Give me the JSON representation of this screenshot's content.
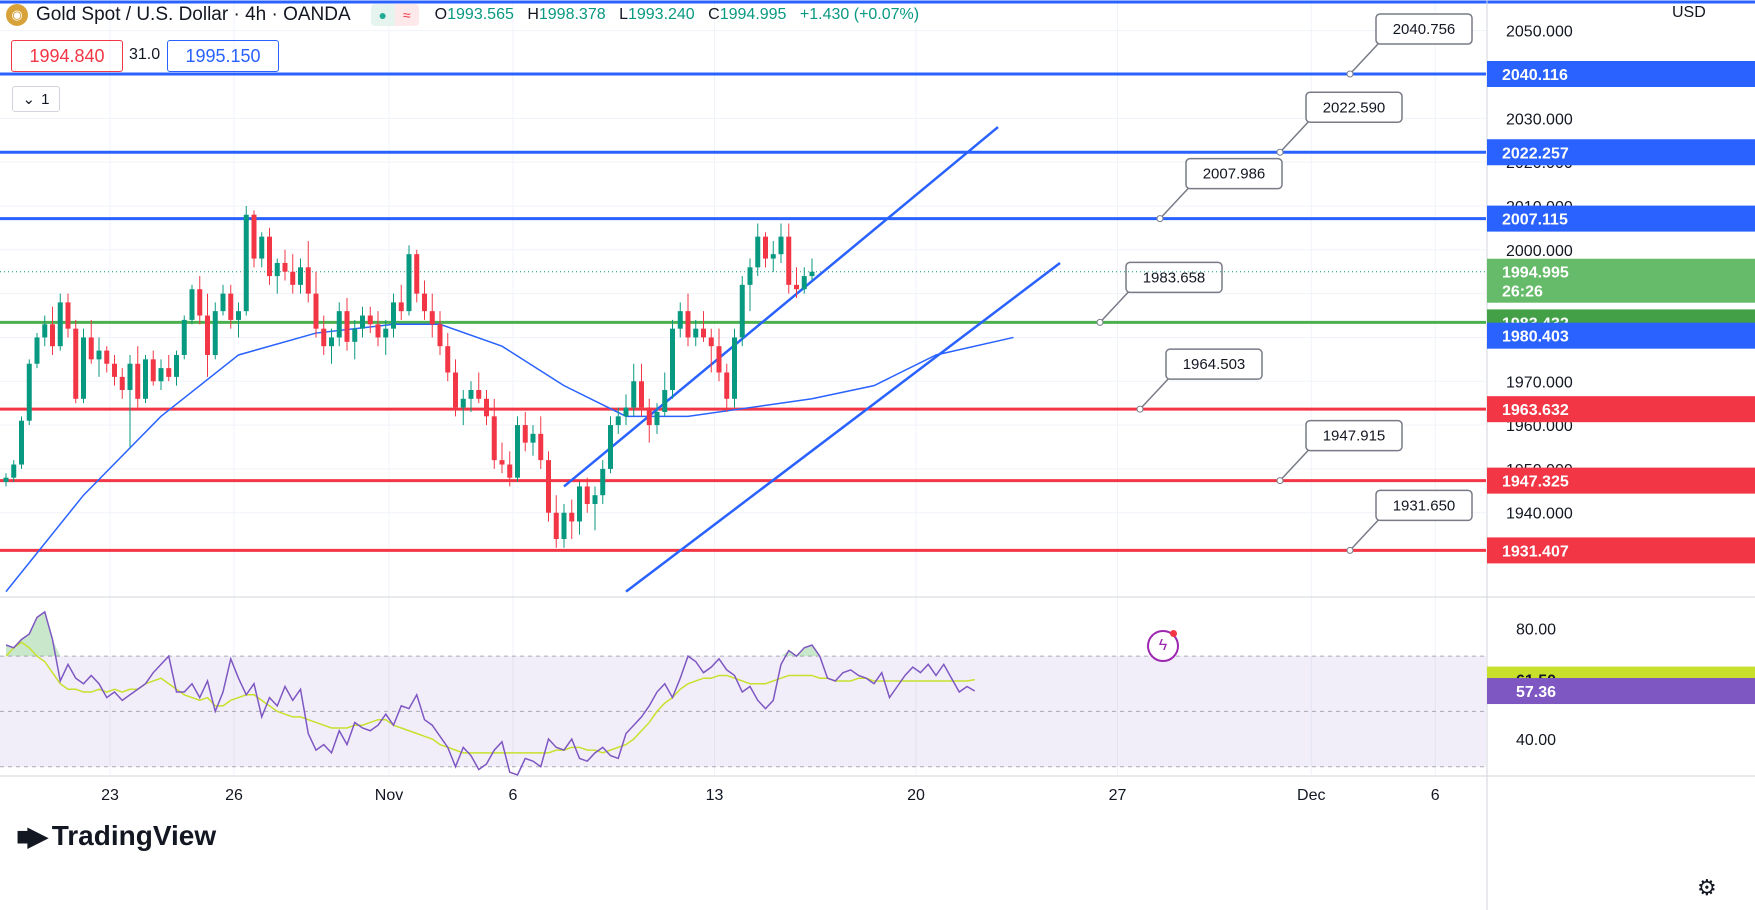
{
  "header": {
    "symbol": "Gold Spot / U.S. Dollar · 4h · OANDA",
    "ohlc": {
      "o_label": "O",
      "o": "1993.565",
      "h_label": "H",
      "h": "1998.378",
      "l_label": "L",
      "l": "1993.240",
      "c_label": "C",
      "c": "1994.995",
      "change": "+1.430 (+0.07%)"
    }
  },
  "quote": {
    "bid": "1994.840",
    "spread": "31.0",
    "ask": "1995.150"
  },
  "indicators_collapsed": "1",
  "currency": "USD",
  "brand": "TradingView",
  "icons": {
    "eye": "eye-icon",
    "wave": "approx-icon",
    "settings": "gear-icon",
    "alert": "lightning-icon"
  },
  "colors": {
    "up": "#089981",
    "down": "#f23645",
    "resistance": "#2962ff",
    "support_line": "#4caf50",
    "channel": "#2962ff",
    "ma": "#2962ff",
    "rsi": "#7e57c2",
    "rsi_ma": "#c8e02c"
  },
  "chart_data": [
    {
      "type": "candlestick",
      "title": "Gold Spot / U.S. Dollar · 4h · OANDA",
      "x_tick_labels": [
        "23",
        "26",
        "Nov",
        "6",
        "13",
        "20",
        "27",
        "Dec",
        "6"
      ],
      "ylim": [
        1921,
        2057
      ],
      "y_ticks": [
        1940,
        1950,
        1960,
        1970,
        1980,
        1990,
        2000,
        2010,
        2020,
        2030,
        2040,
        2050
      ],
      "y_tick_labels": [
        "1940.000",
        "1950.000",
        "1960.000",
        "1970.000",
        "1980.000",
        "1990.000",
        "2000.000",
        "2010.000",
        "2020.000",
        "2030.000",
        "2040.000",
        "2050.000"
      ],
      "price_badges": [
        {
          "label": "2040.116",
          "value": 2040.116,
          "color": "#2962ff"
        },
        {
          "label": "2022.257",
          "value": 2022.257,
          "color": "#2962ff"
        },
        {
          "label": "2007.115",
          "value": 2007.115,
          "color": "#2962ff"
        },
        {
          "label": "1994.995",
          "sub": "26:26",
          "value": 1994.995,
          "color": "#66bb6a"
        },
        {
          "label": "1983.432",
          "value": 1983.432,
          "color": "#43a047"
        },
        {
          "label": "1980.403",
          "value": 1980.403,
          "color": "#2962ff"
        },
        {
          "label": "1963.632",
          "value": 1963.632,
          "color": "#f23645"
        },
        {
          "label": "1947.325",
          "value": 1947.325,
          "color": "#f23645"
        },
        {
          "label": "1931.407",
          "value": 1931.407,
          "color": "#f23645"
        }
      ],
      "horizontal_levels": [
        {
          "value": 2040.116,
          "color": "#2962ff",
          "callout": "2040.756"
        },
        {
          "value": 2022.257,
          "color": "#2962ff",
          "callout": "2022.590"
        },
        {
          "value": 2007.115,
          "color": "#2962ff",
          "callout": "2007.986"
        },
        {
          "value": 1983.432,
          "color": "#4caf50",
          "callout": "1983.658"
        },
        {
          "value": 1963.632,
          "color": "#f23645",
          "callout": "1964.503"
        },
        {
          "value": 1947.325,
          "color": "#f23645",
          "callout": "1947.915"
        },
        {
          "value": 1931.407,
          "color": "#f23645",
          "callout": "1931.650"
        }
      ],
      "channel": {
        "upper": [
          [
            72,
            1946
          ],
          [
            128,
            2028
          ]
        ],
        "lower": [
          [
            80,
            1922
          ],
          [
            136,
            1997
          ]
        ]
      },
      "moving_average": [
        [
          0,
          1922
        ],
        [
          10,
          1944
        ],
        [
          20,
          1962
        ],
        [
          30,
          1976
        ],
        [
          40,
          1981
        ],
        [
          50,
          1983
        ],
        [
          56,
          1983
        ],
        [
          64,
          1978
        ],
        [
          72,
          1969
        ],
        [
          80,
          1962
        ],
        [
          88,
          1962
        ],
        [
          96,
          1964
        ],
        [
          104,
          1966
        ],
        [
          112,
          1969
        ],
        [
          120,
          1976
        ],
        [
          130,
          1980
        ]
      ],
      "candles": [
        [
          1947,
          1949,
          1946,
          1948
        ],
        [
          1948,
          1952,
          1947,
          1951
        ],
        [
          1951,
          1962,
          1950,
          1961
        ],
        [
          1961,
          1975,
          1960,
          1974
        ],
        [
          1974,
          1981,
          1973,
          1980
        ],
        [
          1980,
          1985,
          1978,
          1983
        ],
        [
          1983,
          1987,
          1976,
          1978
        ],
        [
          1978,
          1990,
          1977,
          1988
        ],
        [
          1988,
          1990,
          1980,
          1982
        ],
        [
          1982,
          1984,
          1965,
          1966
        ],
        [
          1966,
          1982,
          1965,
          1980
        ],
        [
          1980,
          1984,
          1974,
          1975
        ],
        [
          1975,
          1980,
          1971,
          1977
        ],
        [
          1977,
          1978,
          1972,
          1974
        ],
        [
          1974,
          1976,
          1969,
          1971
        ],
        [
          1971,
          1973,
          1966,
          1968
        ],
        [
          1968,
          1976,
          1955,
          1974
        ],
        [
          1974,
          1978,
          1964,
          1966
        ],
        [
          1966,
          1976,
          1965,
          1975
        ],
        [
          1975,
          1977,
          1969,
          1970
        ],
        [
          1970,
          1975,
          1968,
          1973
        ],
        [
          1973,
          1976,
          1970,
          1971
        ],
        [
          1971,
          1977,
          1969,
          1976
        ],
        [
          1976,
          1985,
          1975,
          1984
        ],
        [
          1984,
          1992,
          1983,
          1991
        ],
        [
          1991,
          1994,
          1983,
          1985
        ],
        [
          1985,
          1990,
          1971,
          1976
        ],
        [
          1976,
          1988,
          1975,
          1986
        ],
        [
          1986,
          1992,
          1985,
          1990
        ],
        [
          1990,
          1992,
          1982,
          1984
        ],
        [
          1984,
          1988,
          1980,
          1986
        ],
        [
          1986,
          2010,
          1985,
          2008
        ],
        [
          2008,
          2009,
          1996,
          1998
        ],
        [
          1998,
          2004,
          1996,
          2003
        ],
        [
          2003,
          2005,
          1992,
          1994
        ],
        [
          1994,
          1998,
          1990,
          1997
        ],
        [
          1997,
          2000,
          1993,
          1995
        ],
        [
          1995,
          1999,
          1990,
          1992
        ],
        [
          1992,
          1998,
          1990,
          1996
        ],
        [
          1996,
          2002,
          1988,
          1990
        ],
        [
          1990,
          1995,
          1980,
          1982
        ],
        [
          1982,
          1985,
          1976,
          1978
        ],
        [
          1978,
          1982,
          1974,
          1980
        ],
        [
          1980,
          1988,
          1978,
          1986
        ],
        [
          1986,
          1989,
          1977,
          1979
        ],
        [
          1979,
          1984,
          1975,
          1982
        ],
        [
          1982,
          1987,
          1980,
          1985
        ],
        [
          1985,
          1987,
          1981,
          1983
        ],
        [
          1983,
          1986,
          1978,
          1980
        ],
        [
          1980,
          1984,
          1976,
          1982
        ],
        [
          1982,
          1990,
          1980,
          1988
        ],
        [
          1988,
          1992,
          1984,
          1986
        ],
        [
          1986,
          2001,
          1985,
          1999
        ],
        [
          1999,
          2000,
          1988,
          1990
        ],
        [
          1990,
          1993,
          1984,
          1986
        ],
        [
          1986,
          1990,
          1980,
          1983
        ],
        [
          1983,
          1986,
          1976,
          1978
        ],
        [
          1978,
          1981,
          1970,
          1972
        ],
        [
          1972,
          1975,
          1962,
          1964
        ],
        [
          1964,
          1968,
          1960,
          1966
        ],
        [
          1966,
          1970,
          1963,
          1968
        ],
        [
          1968,
          1972,
          1965,
          1966
        ],
        [
          1966,
          1968,
          1960,
          1962
        ],
        [
          1962,
          1966,
          1950,
          1952
        ],
        [
          1952,
          1956,
          1949,
          1951
        ],
        [
          1951,
          1954,
          1946,
          1948
        ],
        [
          1948,
          1962,
          1947,
          1960
        ],
        [
          1960,
          1963,
          1954,
          1956
        ],
        [
          1956,
          1960,
          1953,
          1958
        ],
        [
          1958,
          1962,
          1950,
          1952
        ],
        [
          1952,
          1954,
          1938,
          1940
        ],
        [
          1940,
          1944,
          1932,
          1934
        ],
        [
          1934,
          1942,
          1932,
          1940
        ],
        [
          1940,
          1943,
          1934,
          1938
        ],
        [
          1938,
          1947,
          1935,
          1946
        ],
        [
          1946,
          1948,
          1940,
          1942
        ],
        [
          1942,
          1946,
          1936,
          1944
        ],
        [
          1944,
          1952,
          1942,
          1950
        ],
        [
          1950,
          1962,
          1949,
          1960
        ],
        [
          1960,
          1964,
          1958,
          1962
        ],
        [
          1962,
          1967,
          1960,
          1964
        ],
        [
          1964,
          1974,
          1962,
          1970
        ],
        [
          1970,
          1974,
          1962,
          1964
        ],
        [
          1964,
          1966,
          1956,
          1960
        ],
        [
          1960,
          1965,
          1958,
          1963
        ],
        [
          1963,
          1972,
          1962,
          1968
        ],
        [
          1968,
          1984,
          1966,
          1982
        ],
        [
          1982,
          1988,
          1980,
          1986
        ],
        [
          1986,
          1990,
          1978,
          1980
        ],
        [
          1980,
          1984,
          1978,
          1982
        ],
        [
          1982,
          1986,
          1979,
          1980
        ],
        [
          1980,
          1982,
          1972,
          1978
        ],
        [
          1978,
          1982,
          1970,
          1972
        ],
        [
          1972,
          1974,
          1963,
          1966
        ],
        [
          1966,
          1982,
          1964,
          1980
        ],
        [
          1980,
          1994,
          1978,
          1992
        ],
        [
          1992,
          1998,
          1986,
          1996
        ],
        [
          1996,
          2006,
          1994,
          2003
        ],
        [
          2003,
          2004,
          1996,
          1998
        ],
        [
          1998,
          2002,
          1995,
          1999
        ],
        [
          1999,
          2006,
          1997,
          2003
        ],
        [
          2003,
          2006,
          1990,
          1992
        ],
        [
          1992,
          1996,
          1989,
          1991
        ],
        [
          1991,
          1996,
          1990,
          1994
        ],
        [
          1994,
          1998,
          1993,
          1994.995
        ]
      ]
    },
    {
      "type": "line",
      "title": "RSI",
      "ylim": [
        27,
        91
      ],
      "y_ticks": [
        40,
        80
      ],
      "y_tick_labels": [
        "40.00",
        "80.00"
      ],
      "band": [
        30,
        70
      ],
      "badges": [
        {
          "label": "61.50",
          "value": 61.5,
          "color": "#c8e02c",
          "text_color": "#131722"
        },
        {
          "label": "57.36",
          "value": 57.36,
          "color": "#7e57c2",
          "text_color": "#ffffff"
        }
      ],
      "series": [
        {
          "color": "#7e57c2",
          "values": [
            74,
            73,
            76,
            78,
            84,
            86,
            76,
            61,
            67,
            62,
            60,
            63,
            60,
            55,
            57,
            54,
            56,
            58,
            60,
            64,
            67,
            70,
            57,
            57,
            60,
            55,
            61,
            50,
            57,
            69,
            62,
            56,
            60,
            48,
            55,
            52,
            59,
            54,
            58,
            42,
            36,
            38,
            35,
            43,
            38,
            46,
            44,
            43,
            45,
            49,
            45,
            52,
            51,
            56,
            47,
            45,
            41,
            37,
            30,
            37,
            34,
            29,
            31,
            36,
            39,
            28,
            27,
            33,
            32,
            30,
            40,
            37,
            36,
            40,
            33,
            32,
            35,
            37,
            34,
            33,
            42,
            45,
            48,
            52,
            57,
            60,
            55,
            62,
            70,
            68,
            64,
            66,
            69,
            65,
            63,
            57,
            59,
            54,
            51,
            54,
            67,
            72,
            70,
            73,
            74,
            70,
            62,
            61,
            64,
            65,
            63,
            62,
            60,
            64,
            55,
            59,
            63,
            66,
            64,
            67,
            63,
            67,
            62,
            57,
            59,
            57.36
          ]
        },
        {
          "color": "#c8e02c",
          "values": [
            70,
            73,
            75,
            73,
            70,
            68,
            64,
            60,
            58,
            58,
            57,
            57,
            58,
            57,
            58,
            57,
            58,
            58,
            60,
            61,
            62,
            60,
            58,
            56,
            55,
            54,
            55,
            52,
            52,
            54,
            55,
            56,
            56,
            54,
            52,
            50,
            49,
            48,
            48,
            47,
            46,
            45,
            44,
            44,
            44,
            45,
            45,
            46,
            47,
            47,
            45,
            44,
            43,
            42,
            41,
            40,
            38,
            37,
            36,
            35,
            35,
            35,
            35,
            35,
            35,
            35,
            35,
            35,
            35,
            35,
            35,
            36,
            36,
            37,
            37,
            36,
            36,
            35,
            36,
            37,
            38,
            40,
            43,
            46,
            50,
            53,
            55,
            58,
            60,
            61,
            62,
            62,
            63,
            63,
            62,
            61,
            60,
            60,
            60,
            61,
            62,
            63,
            63,
            63,
            63,
            62,
            62,
            61,
            61,
            61,
            62,
            62,
            61,
            61,
            61,
            61,
            61,
            61,
            61,
            61,
            61,
            61,
            61,
            61,
            61,
            61.5
          ]
        }
      ]
    }
  ]
}
